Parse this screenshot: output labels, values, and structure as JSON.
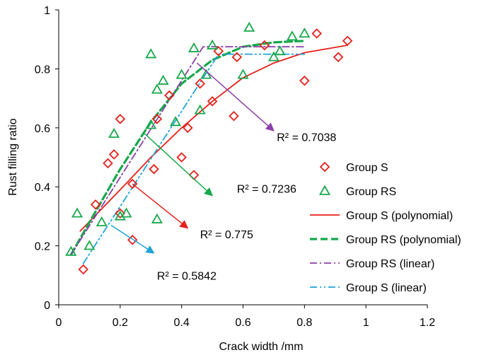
{
  "chart_data": {
    "type": "scatter",
    "title": "",
    "xlabel": "Crack width /mm",
    "ylabel": "Rust filling ratio",
    "xlim": [
      0,
      1.2
    ],
    "ylim": [
      0,
      1.0
    ],
    "xticks": [
      "0",
      "0.2",
      "0.4",
      "0.6",
      "0.8",
      "1",
      "1.2"
    ],
    "yticks": [
      "0",
      "0.2",
      "0.4",
      "0.6",
      "0.8",
      "1"
    ],
    "grid": false,
    "legend_position": "right",
    "series": [
      {
        "name": "Group S",
        "marker": "diamond",
        "color": "#e8201a",
        "x": [
          0.08,
          0.12,
          0.16,
          0.18,
          0.2,
          0.2,
          0.24,
          0.24,
          0.31,
          0.32,
          0.36,
          0.4,
          0.42,
          0.44,
          0.46,
          0.5,
          0.52,
          0.57,
          0.58,
          0.67,
          0.8,
          0.84,
          0.91,
          0.94
        ],
        "y": [
          0.12,
          0.34,
          0.48,
          0.51,
          0.31,
          0.63,
          0.22,
          0.41,
          0.46,
          0.63,
          0.71,
          0.5,
          0.6,
          0.44,
          0.75,
          0.69,
          0.86,
          0.64,
          0.84,
          0.88,
          0.76,
          0.92,
          0.84,
          0.895
        ]
      },
      {
        "name": "Group RS",
        "marker": "triangle",
        "color": "#17a84b",
        "x": [
          0.04,
          0.06,
          0.1,
          0.14,
          0.18,
          0.2,
          0.22,
          0.3,
          0.3,
          0.32,
          0.32,
          0.34,
          0.38,
          0.4,
          0.44,
          0.46,
          0.48,
          0.5,
          0.6,
          0.62,
          0.7,
          0.72,
          0.76,
          0.8
        ],
        "y": [
          0.18,
          0.31,
          0.2,
          0.28,
          0.58,
          0.3,
          0.31,
          0.85,
          0.61,
          0.73,
          0.29,
          0.76,
          0.62,
          0.78,
          0.87,
          0.66,
          0.78,
          0.88,
          0.78,
          0.94,
          0.84,
          0.86,
          0.91,
          0.92
        ]
      }
    ],
    "fits": [
      {
        "name": "Group S (polynomial)",
        "color": "#e8201a",
        "style": "solid",
        "x": [
          0.07,
          0.2,
          0.3,
          0.4,
          0.5,
          0.6,
          0.7,
          0.8,
          0.94
        ],
        "y": [
          0.25,
          0.39,
          0.5,
          0.6,
          0.69,
          0.77,
          0.82,
          0.855,
          0.88
        ]
      },
      {
        "name": "Group RS (polynomial)",
        "color": "#17a84b",
        "style": "dash",
        "x": [
          0.04,
          0.1,
          0.2,
          0.3,
          0.4,
          0.5,
          0.6,
          0.7,
          0.8
        ],
        "y": [
          0.17,
          0.28,
          0.46,
          0.62,
          0.75,
          0.83,
          0.875,
          0.89,
          0.895
        ]
      },
      {
        "name": "Group RS (linear)",
        "color": "#8b3fa8",
        "style": "dashdot",
        "x": [
          0.04,
          0.47,
          0.8
        ],
        "y": [
          0.17,
          0.875,
          0.875
        ]
      },
      {
        "name": "Group S (linear)",
        "color": "#1fa4d8",
        "style": "dashdotdot",
        "x": [
          0.08,
          0.52,
          0.8
        ],
        "y": [
          0.14,
          0.85,
          0.85
        ]
      }
    ],
    "annotations": [
      {
        "text": "R² = 0.7038",
        "color": "#8b3fa8",
        "from": [
          0.45,
          0.82
        ],
        "to": [
          0.7,
          0.59
        ],
        "label_at": [
          0.71,
          0.555
        ]
      },
      {
        "text": "R² = 0.7236",
        "color": "#17a84b",
        "from": [
          0.28,
          0.58
        ],
        "to": [
          0.5,
          0.37
        ],
        "label_at": [
          0.58,
          0.38
        ]
      },
      {
        "text": "R² = 0.775",
        "color": "#e8201a",
        "from": [
          0.24,
          0.41
        ],
        "to": [
          0.42,
          0.26
        ],
        "label_at": [
          0.46,
          0.225
        ]
      },
      {
        "text": "R² = 0.5842",
        "color": "#1fa4d8",
        "from": [
          0.17,
          0.27
        ],
        "to": [
          0.31,
          0.175
        ],
        "label_at": [
          0.32,
          0.085
        ]
      }
    ],
    "legend": [
      {
        "label": "Group S",
        "kind": "diamond",
        "color": "#e8201a"
      },
      {
        "label": "Group RS",
        "kind": "triangle",
        "color": "#17a84b"
      },
      {
        "label": "Group S (polynomial)",
        "kind": "solid",
        "color": "#e8201a"
      },
      {
        "label": "Group RS (polynomial)",
        "kind": "dash",
        "color": "#17a84b"
      },
      {
        "label": "Group RS (linear)",
        "kind": "dashdot",
        "color": "#8b3fa8"
      },
      {
        "label": "Group S (linear)",
        "kind": "dashdotdot",
        "color": "#1fa4d8"
      }
    ]
  }
}
